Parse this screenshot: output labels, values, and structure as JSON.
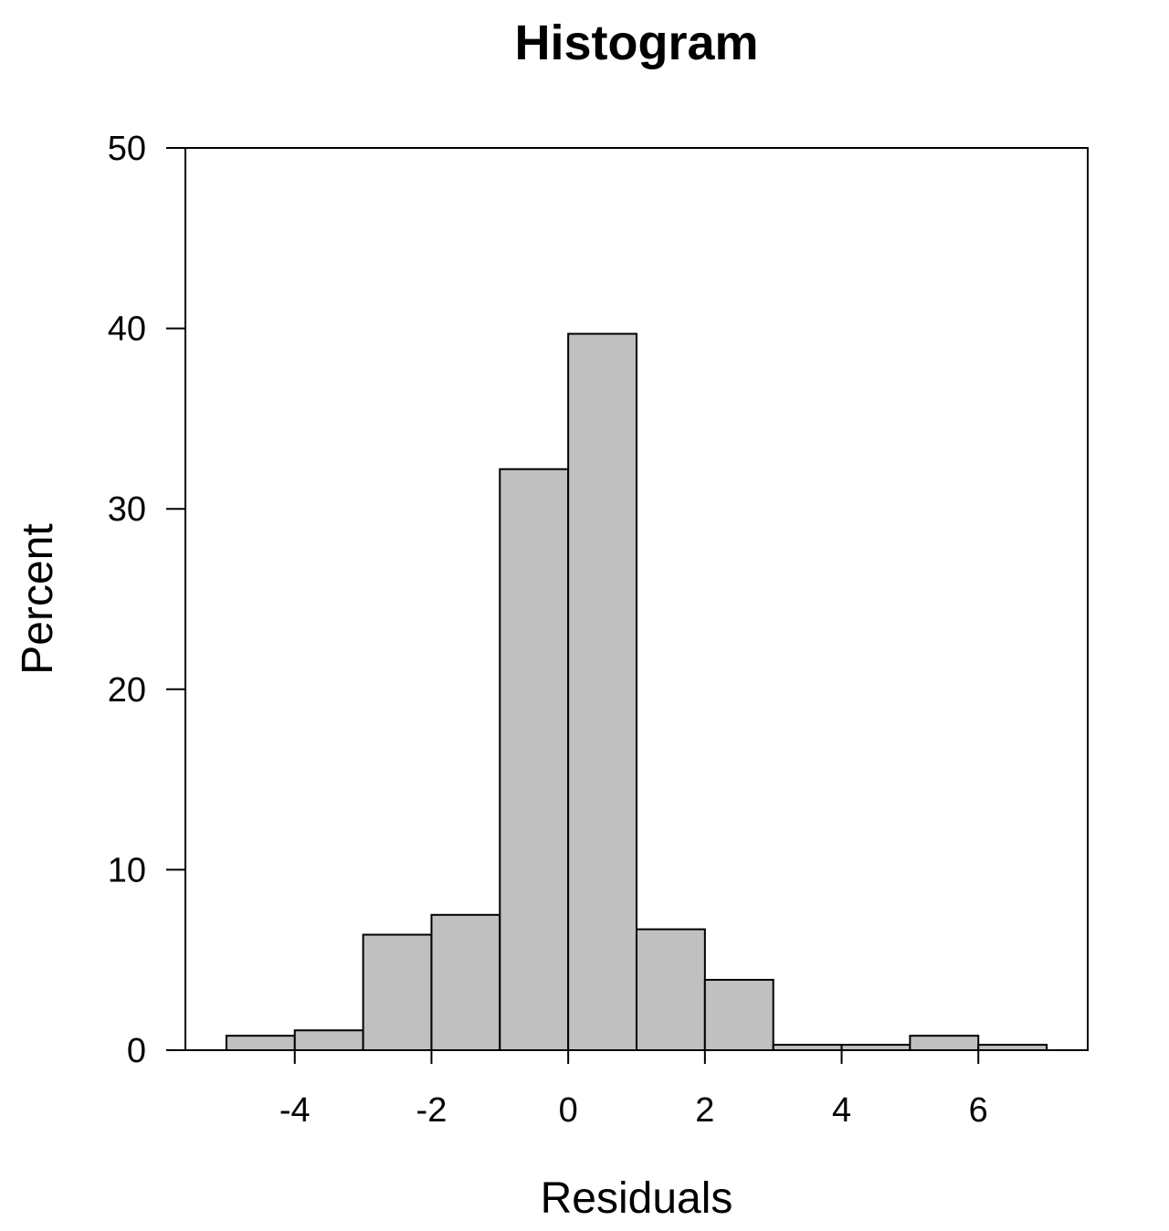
{
  "chart_data": {
    "type": "bar",
    "title": "Histogram",
    "xlabel": "Residuals",
    "ylabel": "Percent",
    "xlim": [
      -5.6,
      7.6
    ],
    "ylim": [
      0,
      50
    ],
    "x_ticks": [
      -4,
      -2,
      0,
      2,
      4,
      6
    ],
    "x_tick_labels": [
      "-4",
      "-2",
      "0",
      "2",
      "4",
      "6"
    ],
    "y_ticks": [
      0,
      10,
      20,
      30,
      40,
      50
    ],
    "y_tick_labels": [
      "0",
      "10",
      "20",
      "30",
      "40",
      "50"
    ],
    "bin_edges": [
      -5,
      -4,
      -3,
      -2,
      -1,
      0,
      1,
      2,
      3,
      4,
      5,
      6,
      7
    ],
    "values": [
      0.8,
      1.1,
      6.4,
      7.5,
      32.2,
      39.7,
      6.7,
      3.9,
      0.3,
      0.3,
      0.8,
      0.3
    ],
    "bar_color": "#c0c0c0",
    "grid": false,
    "legend": false
  }
}
